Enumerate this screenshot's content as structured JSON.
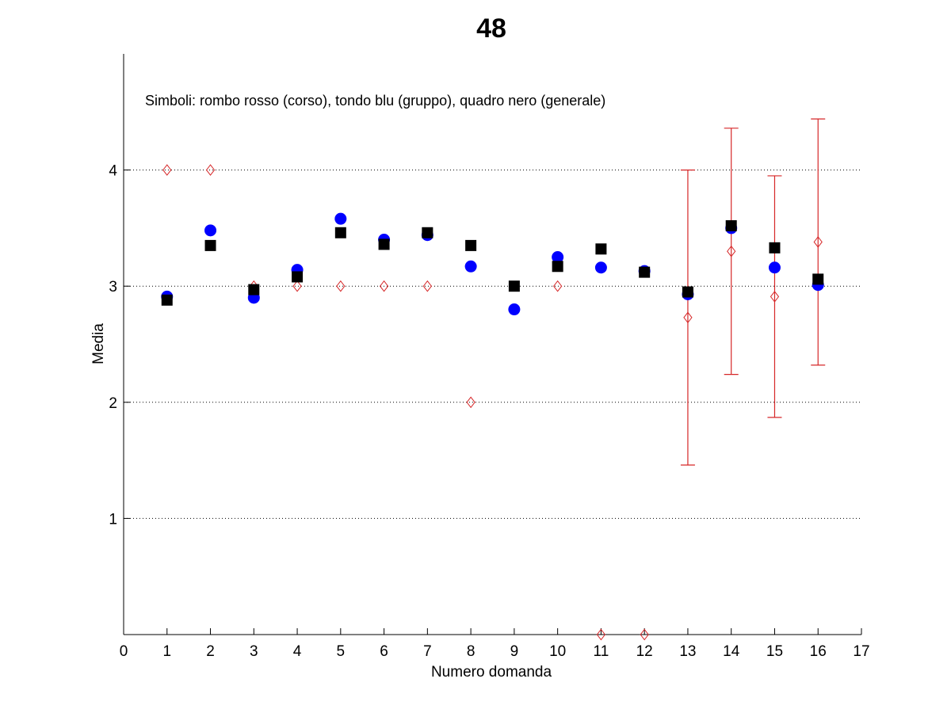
{
  "chart_data": {
    "type": "scatter",
    "title": "48",
    "xlabel": "Numero domanda",
    "ylabel": "Media",
    "annotation": "Simboli: rombo rosso (corso), tondo blu (gruppo), quadro nero (generale)",
    "xlim": [
      0,
      17
    ],
    "ylim": [
      0,
      5
    ],
    "x_ticks": [
      0,
      1,
      2,
      3,
      4,
      5,
      6,
      7,
      8,
      9,
      10,
      11,
      12,
      13,
      14,
      15,
      16,
      17
    ],
    "y_ticks": [
      1,
      2,
      3,
      4
    ],
    "grid": "horizontal dotted at y ticks",
    "series": [
      {
        "marker": "diamond",
        "color": "#d62728",
        "x": [
          1,
          2,
          3,
          4,
          5,
          6,
          7,
          8,
          10,
          11,
          12,
          13,
          14,
          15,
          16
        ],
        "y": [
          4.0,
          4.0,
          3.0,
          3.0,
          3.0,
          3.0,
          3.0,
          2.0,
          3.0,
          0.0,
          0.0,
          2.73,
          3.3,
          2.91,
          3.38
        ],
        "error_bars": [
          {
            "x": 13,
            "low": 1.46,
            "high": 4.0
          },
          {
            "x": 14,
            "low": 2.24,
            "high": 4.36
          },
          {
            "x": 15,
            "low": 1.87,
            "high": 3.95
          },
          {
            "x": 16,
            "low": 2.32,
            "high": 4.44
          }
        ]
      },
      {
        "marker": "circle",
        "color": "#0000ff",
        "x": [
          1,
          2,
          3,
          4,
          5,
          6,
          7,
          8,
          9,
          10,
          11,
          12,
          13,
          14,
          15,
          16
        ],
        "y": [
          2.91,
          3.48,
          2.9,
          3.14,
          3.58,
          3.4,
          3.44,
          3.17,
          2.8,
          3.25,
          3.16,
          3.13,
          2.93,
          3.5,
          3.16,
          3.01
        ]
      },
      {
        "marker": "square",
        "color": "#000000",
        "x": [
          1,
          2,
          3,
          4,
          5,
          6,
          7,
          8,
          9,
          10,
          11,
          12,
          13,
          14,
          15,
          16
        ],
        "y": [
          2.88,
          3.35,
          2.97,
          3.08,
          3.46,
          3.36,
          3.46,
          3.35,
          3.0,
          3.17,
          3.32,
          3.12,
          2.95,
          3.52,
          3.33,
          3.06
        ]
      }
    ]
  }
}
